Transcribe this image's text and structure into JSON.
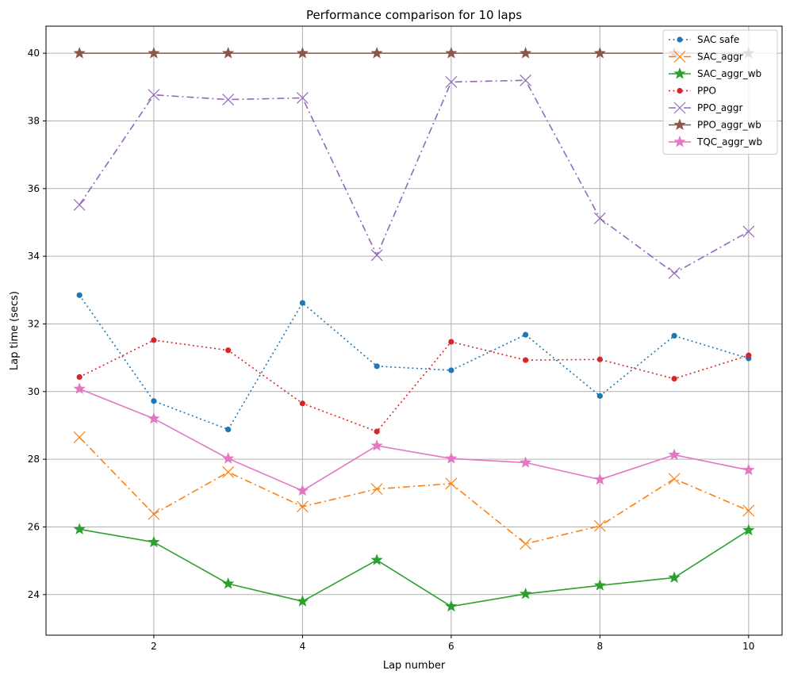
{
  "chart_data": {
    "type": "line",
    "title": "Performance comparison for 10 laps",
    "xlabel": "Lap number",
    "ylabel": "Lap time (secs)",
    "x": [
      1,
      2,
      3,
      4,
      5,
      6,
      7,
      8,
      9,
      10
    ],
    "xlim": [
      0.55,
      10.45
    ],
    "ylim": [
      22.8,
      40.8
    ],
    "xticks": [
      2,
      4,
      6,
      8,
      10
    ],
    "yticks": [
      24,
      26,
      28,
      30,
      32,
      34,
      36,
      38,
      40
    ],
    "grid": true,
    "legend_position": "top-right",
    "series": [
      {
        "name": "SAC safe",
        "color": "#1f77b4",
        "dash": "dotted",
        "marker": "circle",
        "values": [
          32.85,
          29.72,
          28.88,
          32.62,
          30.75,
          30.63,
          31.68,
          29.87,
          31.65,
          30.98
        ]
      },
      {
        "name": "SAC_aggr",
        "color": "#ff7f0e",
        "dash": "dashdot",
        "marker": "x",
        "values": [
          28.65,
          26.38,
          27.62,
          26.6,
          27.12,
          27.28,
          25.5,
          26.03,
          27.42,
          26.48
        ]
      },
      {
        "name": "SAC_aggr_wb",
        "color": "#2ca02c",
        "dash": "solid",
        "marker": "star",
        "values": [
          25.93,
          25.55,
          24.32,
          23.8,
          25.02,
          23.65,
          24.02,
          24.27,
          24.5,
          25.9
        ]
      },
      {
        "name": "PPO",
        "color": "#d62728",
        "dash": "dotted",
        "marker": "circle",
        "values": [
          30.43,
          31.52,
          31.22,
          29.65,
          28.82,
          31.47,
          30.93,
          30.95,
          30.38,
          31.07
        ]
      },
      {
        "name": "PPO_aggr",
        "color": "#9467bd",
        "dash": "dashdot",
        "marker": "x",
        "values": [
          35.52,
          38.77,
          38.63,
          38.68,
          34.03,
          39.15,
          39.2,
          35.12,
          33.5,
          34.73
        ]
      },
      {
        "name": "PPO_aggr_wb",
        "color": "#8c564b",
        "dash": "solid",
        "marker": "star",
        "values": [
          40.0,
          40.0,
          40.0,
          40.0,
          40.0,
          40.0,
          40.0,
          40.0,
          40.0,
          40.0
        ]
      },
      {
        "name": "TQC_aggr_wb",
        "color": "#e377c2",
        "dash": "solid",
        "marker": "star",
        "values": [
          30.08,
          29.2,
          28.02,
          27.07,
          28.4,
          28.02,
          27.9,
          27.4,
          28.13,
          27.68
        ]
      }
    ]
  }
}
